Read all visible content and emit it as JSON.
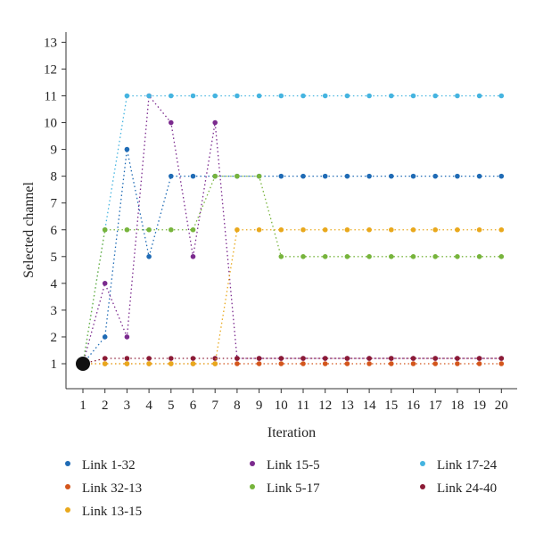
{
  "chart_data": {
    "type": "line",
    "xlabel": "Iteration",
    "ylabel": "Selected channel",
    "xlim": [
      1,
      20
    ],
    "ylim": [
      1,
      13
    ],
    "x": [
      1,
      2,
      3,
      4,
      5,
      6,
      7,
      8,
      9,
      10,
      11,
      12,
      13,
      14,
      15,
      16,
      17,
      18,
      19,
      20
    ],
    "xticks": [
      "1",
      "2",
      "3",
      "4",
      "5",
      "6",
      "7",
      "8",
      "9",
      "10",
      "11",
      "12",
      "13",
      "14",
      "15",
      "16",
      "17",
      "18",
      "19",
      "20"
    ],
    "yticks": [
      "1",
      "2",
      "3",
      "4",
      "5",
      "6",
      "7",
      "8",
      "9",
      "10",
      "11",
      "12",
      "13"
    ],
    "grid": false,
    "legend_position": "bottom",
    "series": [
      {
        "name": "Link 1-32",
        "color": "#1f6bb5",
        "values": [
          1,
          2,
          9,
          5,
          8,
          8,
          8,
          8,
          8,
          8,
          8,
          8,
          8,
          8,
          8,
          8,
          8,
          8,
          8,
          8
        ]
      },
      {
        "name": "Link 15-5",
        "color": "#7b2a8e",
        "values": [
          1,
          4,
          2,
          11,
          10,
          5,
          10,
          1.2,
          1.2,
          1.2,
          1.2,
          1.2,
          1.2,
          1.2,
          1.2,
          1.2,
          1.2,
          1.2,
          1.2,
          1.2
        ]
      },
      {
        "name": "Link 17-24",
        "color": "#45b4e0",
        "values": [
          1,
          6,
          11,
          11,
          11,
          11,
          11,
          11,
          11,
          11,
          11,
          11,
          11,
          11,
          11,
          11,
          11,
          11,
          11,
          11
        ]
      },
      {
        "name": "Link 32-13",
        "color": "#d4561c",
        "values": [
          1,
          1,
          1,
          1,
          1,
          1,
          1,
          1,
          1,
          1,
          1,
          1,
          1,
          1,
          1,
          1,
          1,
          1,
          1,
          1
        ]
      },
      {
        "name": "Link 5-17",
        "color": "#77b43c",
        "values": [
          1,
          6,
          6,
          6,
          6,
          6,
          8,
          8,
          8,
          5,
          5,
          5,
          5,
          5,
          5,
          5,
          5,
          5,
          5,
          5
        ]
      },
      {
        "name": "Link 24-40",
        "color": "#8c1b36",
        "values": [
          1,
          1.2,
          1.2,
          1.2,
          1.2,
          1.2,
          1.2,
          1.2,
          1.2,
          1.2,
          1.2,
          1.2,
          1.2,
          1.2,
          1.2,
          1.2,
          1.2,
          1.2,
          1.2,
          1.2
        ]
      },
      {
        "name": "Link 13-15",
        "color": "#e9a81c",
        "values": [
          1,
          1,
          1,
          1,
          1,
          1,
          1,
          6,
          6,
          6,
          6,
          6,
          6,
          6,
          6,
          6,
          6,
          6,
          6,
          6
        ]
      }
    ]
  }
}
